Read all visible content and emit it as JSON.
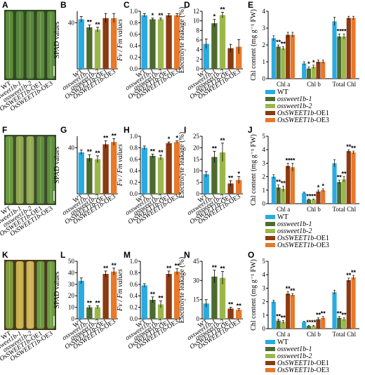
{
  "colors": {
    "WT": "#29abe2",
    "ossweet1b-1": "#4d6b2f",
    "ossweet1b-2": "#9ab84a",
    "OsSWEET1b-OE1": "#8c3a12",
    "OsSWEET1b-OE3": "#e8782a"
  },
  "genotypes": [
    {
      "key": "WT",
      "label": "WT",
      "italic": false,
      "suffix": ""
    },
    {
      "key": "ossweet1b-1",
      "label": "ossweet1b-1",
      "italic": true,
      "suffix": ""
    },
    {
      "key": "ossweet1b-2",
      "label": "ossweet1b-2",
      "italic": true,
      "suffix": ""
    },
    {
      "key": "OsSWEET1b-OE1",
      "label": "OsSWEET1b",
      "italic": true,
      "suffix": "-OE1"
    },
    {
      "key": "OsSWEET1b-OE3",
      "label": "OsSWEET1b",
      "italic": true,
      "suffix": "-OE3"
    }
  ],
  "panel_letters": [
    "A",
    "B",
    "C",
    "D",
    "E",
    "F",
    "G",
    "H",
    "I",
    "J",
    "K",
    "L",
    "M",
    "N",
    "O"
  ],
  "chl_groups": [
    "Chl a",
    "Chl b",
    "Total Chl"
  ],
  "chart_data": [
    {
      "panel": "B",
      "type": "bar",
      "ylabel": "SPAD values",
      "ylim": [
        0,
        50
      ],
      "yticks": [
        40
      ],
      "values": [
        43,
        36,
        34,
        44,
        44
      ],
      "errors": [
        2.5,
        2,
        2,
        4,
        4
      ],
      "sig": [
        "",
        "**",
        "**",
        "",
        ""
      ]
    },
    {
      "panel": "C",
      "type": "bar",
      "ylabel": "Fv / Fm values",
      "ylim": [
        0,
        1.0
      ],
      "yticks": [
        0.0,
        0.2,
        0.4,
        0.6,
        0.8,
        1.0
      ],
      "values": [
        0.93,
        0.86,
        0.86,
        0.93,
        0.93
      ],
      "errors": [
        0.03,
        0.02,
        0.02,
        0.03,
        0.03
      ],
      "sig": [
        "",
        "*",
        "**",
        "",
        ""
      ]
    },
    {
      "panel": "D",
      "type": "bar",
      "ylabel": "Electrolyte leakage (%)",
      "ylim": [
        0,
        12
      ],
      "yticks": [
        0,
        2,
        4,
        6,
        8,
        10,
        12
      ],
      "values": [
        5.2,
        9.5,
        11.2,
        4.3,
        4.6
      ],
      "errors": [
        1,
        0.8,
        0.6,
        0.8,
        1.5
      ],
      "sig": [
        "",
        "*",
        "**",
        "",
        ""
      ]
    },
    {
      "panel": "E",
      "type": "grouped_bar",
      "ylabel": "Chl content (mg g⁻¹ FW)",
      "ylim": [
        0,
        4
      ],
      "yticks": [
        0,
        1,
        2,
        3,
        4
      ],
      "categories": [
        "Chl a",
        "Chl b",
        "Total Chl"
      ],
      "series": [
        {
          "name": "WT",
          "values": [
            2.4,
            0.9,
            3.4
          ],
          "errors": [
            0.15,
            0.1,
            0.25
          ],
          "sig": [
            "",
            "",
            ""
          ]
        },
        {
          "name": "ossweet1b-1",
          "values": [
            1.9,
            0.6,
            2.5
          ],
          "errors": [
            0.1,
            0.1,
            0.15
          ],
          "sig": [
            "**",
            "*",
            "**"
          ]
        },
        {
          "name": "ossweet1b-2",
          "values": [
            1.8,
            0.7,
            2.5
          ],
          "errors": [
            0.1,
            0.1,
            0.15
          ],
          "sig": [
            "**",
            "*",
            "**"
          ]
        },
        {
          "name": "OsSWEET1b-OE1",
          "values": [
            2.6,
            1.0,
            3.6
          ],
          "errors": [
            0.15,
            0.1,
            0.1
          ],
          "sig": [
            "",
            "",
            ""
          ]
        },
        {
          "name": "OsSWEET1b-OE3",
          "values": [
            2.6,
            1.0,
            3.6
          ],
          "errors": [
            0.15,
            0.1,
            0.1
          ],
          "sig": [
            "",
            "",
            ""
          ]
        }
      ]
    },
    {
      "panel": "G",
      "type": "bar",
      "ylabel": "SPAD values",
      "ylim": [
        0,
        50
      ],
      "yticks": [
        40
      ],
      "values": [
        36,
        31,
        30,
        43,
        45
      ],
      "errors": [
        2,
        3,
        3,
        3,
        3
      ],
      "sig": [
        "",
        "**",
        "**",
        "**",
        "**"
      ]
    },
    {
      "panel": "H",
      "type": "bar",
      "ylabel": "Fv / Fm values",
      "ylim": [
        0,
        1.0
      ],
      "yticks": [
        0.0,
        0.2,
        0.4,
        0.6,
        0.8,
        1.0
      ],
      "values": [
        0.8,
        0.66,
        0.63,
        0.88,
        0.9
      ],
      "errors": [
        0.03,
        0.03,
        0.04,
        0.02,
        0.02
      ],
      "sig": [
        "",
        "**",
        "**",
        "*",
        "*"
      ]
    },
    {
      "panel": "I",
      "type": "bar",
      "ylabel": "Electrolyte leakage (%)",
      "ylim": [
        0,
        25
      ],
      "yticks": [
        0,
        5,
        10,
        15,
        20,
        25
      ],
      "values": [
        8.5,
        16,
        18,
        4.5,
        6
      ],
      "errors": [
        1.2,
        2.5,
        4,
        1.2,
        1.5
      ],
      "sig": [
        "",
        "**",
        "**",
        "**",
        "*"
      ]
    },
    {
      "panel": "J",
      "type": "grouped_bar",
      "ylabel": "Chl content (mg g⁻¹ FW)",
      "ylim": [
        0,
        5
      ],
      "yticks": [
        0,
        1,
        2,
        3,
        4,
        5
      ],
      "categories": [
        "Chl a",
        "Chl b",
        "Total Chl"
      ],
      "series": [
        {
          "name": "WT",
          "values": [
            2.0,
            0.8,
            3.0
          ],
          "errors": [
            0.15,
            0.05,
            0.25
          ],
          "sig": [
            "",
            "",
            ""
          ]
        },
        {
          "name": "ossweet1b-1",
          "values": [
            1.2,
            0.3,
            1.6
          ],
          "errors": [
            0.2,
            0.05,
            0.15
          ],
          "sig": [
            "**",
            "**",
            "**"
          ]
        },
        {
          "name": "ossweet1b-2",
          "values": [
            1.1,
            0.3,
            1.8
          ],
          "errors": [
            0.2,
            0.05,
            0.2
          ],
          "sig": [
            "**",
            "**",
            "**"
          ]
        },
        {
          "name": "OsSWEET1b-OE1",
          "values": [
            2.8,
            0.9,
            3.9
          ],
          "errors": [
            0.2,
            0.1,
            0.1
          ],
          "sig": [
            "**",
            "*",
            "**"
          ]
        },
        {
          "name": "OsSWEET1b-OE3",
          "values": [
            2.7,
            1.0,
            3.8
          ],
          "errors": [
            0.3,
            0.1,
            0.1
          ],
          "sig": [
            "**",
            "*",
            "**"
          ]
        }
      ]
    },
    {
      "panel": "L",
      "type": "bar",
      "ylabel": "SPAD values",
      "ylim": [
        0,
        50
      ],
      "yticks": [
        0,
        10,
        20,
        30,
        40,
        50
      ],
      "values": [
        33,
        10,
        10,
        39,
        41
      ],
      "errors": [
        2.5,
        1.2,
        1.2,
        2.5,
        3
      ],
      "sig": [
        "",
        "**",
        "**",
        "**",
        "**"
      ]
    },
    {
      "panel": "M",
      "type": "bar",
      "ylabel": "Fv / Fm values",
      "ylim": [
        0,
        1.0
      ],
      "yticks": [
        0.0,
        0.2,
        0.4,
        0.6,
        0.8,
        1.0
      ],
      "values": [
        0.58,
        0.33,
        0.25,
        0.78,
        0.82
      ],
      "errors": [
        0.03,
        0.05,
        0.06,
        0.05,
        0.05
      ],
      "sig": [
        "",
        "**",
        "**",
        "**",
        "**"
      ]
    },
    {
      "panel": "N",
      "type": "bar",
      "ylabel": "Electrolyte leakage (%)",
      "ylim": [
        0,
        45
      ],
      "yticks": [
        0,
        15,
        30,
        45
      ],
      "values": [
        12,
        33,
        32,
        8,
        7
      ],
      "errors": [
        3,
        5,
        5,
        1,
        1
      ],
      "sig": [
        "",
        "**",
        "**",
        "**",
        "**"
      ]
    },
    {
      "panel": "O",
      "type": "grouped_bar",
      "ylabel": "Chl content (mg g⁻¹ FW)",
      "ylim": [
        0,
        5
      ],
      "yticks": [
        0,
        1,
        2,
        3,
        4,
        5
      ],
      "categories": [
        "Chl a",
        "Chl b",
        "Total Chl"
      ],
      "series": [
        {
          "name": "WT",
          "values": [
            2.0,
            0.5,
            2.7
          ],
          "errors": [
            0.1,
            0.05,
            0.15
          ],
          "sig": [
            "",
            "",
            ""
          ]
        },
        {
          "name": "ossweet1b-1",
          "values": [
            0.6,
            0.2,
            0.8
          ],
          "errors": [
            0.1,
            0.05,
            0.1
          ],
          "sig": [
            "**",
            "**",
            "**"
          ]
        },
        {
          "name": "ossweet1b-2",
          "values": [
            0.5,
            0.2,
            0.7
          ],
          "errors": [
            0.1,
            0.05,
            0.1
          ],
          "sig": [
            "**",
            "**",
            "**"
          ]
        },
        {
          "name": "OsSWEET1b-OE1",
          "values": [
            2.6,
            0.7,
            3.6
          ],
          "errors": [
            0.15,
            0.1,
            0.15
          ],
          "sig": [
            "**",
            "**",
            "**"
          ]
        },
        {
          "name": "OsSWEET1b-OE3",
          "values": [
            2.5,
            0.8,
            3.8
          ],
          "errors": [
            0.1,
            0.1,
            0.15
          ],
          "sig": [
            "**",
            "**",
            "**"
          ]
        }
      ]
    }
  ]
}
